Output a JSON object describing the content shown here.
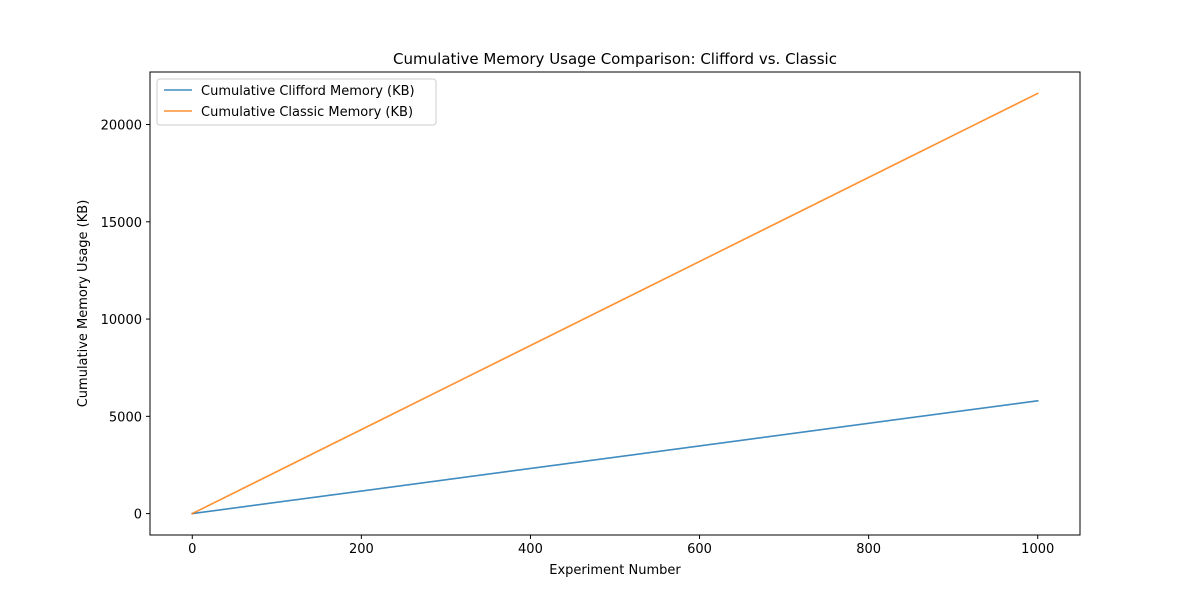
{
  "chart_data": {
    "type": "line",
    "title": "Cumulative Memory Usage Comparison: Clifford vs. Classic",
    "xlabel": "Experiment Number",
    "ylabel": "Cumulative Memory Usage (KB)",
    "xlim": [
      -50,
      1050
    ],
    "ylim": [
      -1100,
      22700
    ],
    "xticks": [
      0,
      200,
      400,
      600,
      800,
      1000
    ],
    "yticks": [
      0,
      5000,
      10000,
      15000,
      20000
    ],
    "grid": false,
    "legend_position": "upper left",
    "series": [
      {
        "name": "Cumulative Clifford Memory (KB)",
        "color": "#1f77b4",
        "x": [
          0,
          1000
        ],
        "y": [
          0,
          5800
        ]
      },
      {
        "name": "Cumulative Classic Memory (KB)",
        "color": "#ff7f0e",
        "x": [
          0,
          1000
        ],
        "y": [
          0,
          21600
        ]
      }
    ]
  }
}
